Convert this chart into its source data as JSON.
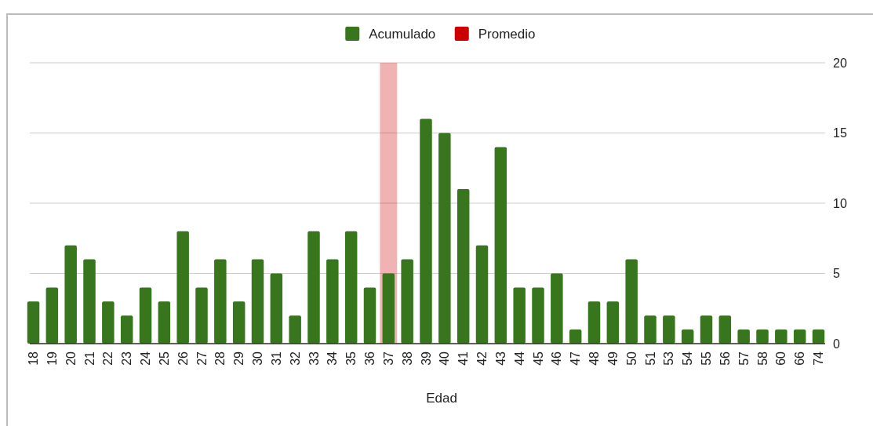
{
  "chart_data": {
    "type": "bar",
    "xlabel": "Edad",
    "categories": [
      "18",
      "19",
      "20",
      "21",
      "22",
      "23",
      "24",
      "25",
      "26",
      "27",
      "28",
      "29",
      "30",
      "31",
      "32",
      "33",
      "34",
      "35",
      "36",
      "37",
      "38",
      "39",
      "40",
      "41",
      "42",
      "43",
      "44",
      "45",
      "46",
      "47",
      "48",
      "49",
      "50",
      "51",
      "53",
      "54",
      "55",
      "56",
      "57",
      "58",
      "60",
      "66",
      "74"
    ],
    "series": [
      {
        "name": "Promedio",
        "color": "#cc0000",
        "values": [
          null,
          null,
          null,
          null,
          null,
          null,
          null,
          null,
          null,
          null,
          null,
          null,
          null,
          null,
          null,
          null,
          null,
          null,
          null,
          20,
          null,
          null,
          null,
          null,
          null,
          null,
          null,
          null,
          null,
          null,
          null,
          null,
          null,
          null,
          null,
          null,
          null,
          null,
          null,
          null,
          null,
          null,
          null
        ]
      },
      {
        "name": "Acumulado",
        "color": "#38761d",
        "values": [
          3,
          4,
          7,
          6,
          3,
          2,
          4,
          3,
          8,
          4,
          6,
          3,
          6,
          5,
          2,
          8,
          6,
          8,
          4,
          5,
          6,
          16,
          15,
          11,
          7,
          14,
          4,
          4,
          5,
          1,
          3,
          3,
          6,
          2,
          2,
          1,
          2,
          2,
          1,
          1,
          1,
          1,
          1
        ]
      }
    ],
    "ylim": [
      0,
      20
    ],
    "yticks": [
      0,
      5,
      10,
      15,
      20
    ],
    "grid": true,
    "legend": "top"
  }
}
